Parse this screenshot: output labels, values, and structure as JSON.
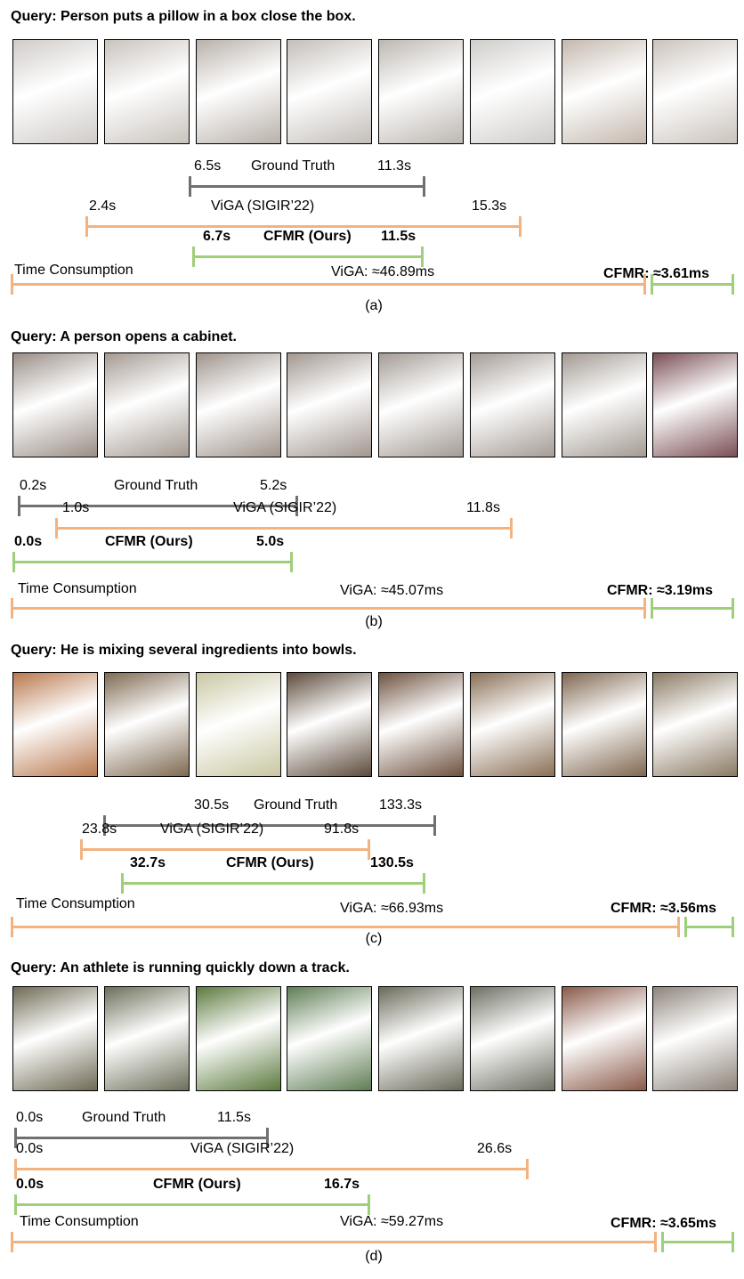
{
  "colors": {
    "ground_truth": "#707070",
    "viga": "#f3b27e",
    "cfmr": "#9fcf7a"
  },
  "panels": [
    {
      "query": "Query: Person puts a pillow in a box close the box.",
      "caption": "(a)",
      "gt": {
        "start": "6.5s",
        "name": "Ground Truth",
        "end": "11.3s"
      },
      "viga": {
        "start": "2.4s",
        "name": "ViGA (SIGIR’22)",
        "end": "15.3s"
      },
      "cfmr": {
        "start": "6.7s",
        "name": "CFMR (Ours)",
        "end": "11.5s"
      },
      "time": {
        "label": "Time Consumption",
        "viga": "ViGA: ≈46.89ms",
        "cfmr": "CFMR: ≈3.61ms"
      },
      "frames": [
        "#cfcbc8",
        "#c9c3bd",
        "#b9b1aa",
        "#c3beb9",
        "#bdb7b1",
        "#cfcdca",
        "#c4b8ae",
        "#cbc3bc"
      ]
    },
    {
      "query": "Query: A person opens a cabinet.",
      "caption": "(b)",
      "gt": {
        "start": "0.2s",
        "name": "Ground Truth",
        "end": "5.2s"
      },
      "viga": {
        "start": "1.0s",
        "name": "ViGA (SIGIR’22)",
        "end": "11.8s"
      },
      "cfmr": {
        "start": "0.0s",
        "name": "CFMR (Ours)",
        "end": "5.0s"
      },
      "time": {
        "label": "Time Consumption",
        "viga": "ViGA: ≈45.07ms",
        "cfmr": "CFMR: ≈3.19ms"
      },
      "frames": [
        "#9a8e86",
        "#a59a92",
        "#a0948c",
        "#a29790",
        "#a49b94",
        "#a59c95",
        "#a39a92",
        "#7a4f55"
      ]
    },
    {
      "query": "Query: He is mixing several ingredients into bowls.",
      "caption": "(c)",
      "gt": {
        "start": "30.5s",
        "name": "Ground Truth",
        "end": "133.3s"
      },
      "viga": {
        "start": "23.8s",
        "name": "ViGA (SIGIR’22)",
        "end": "91.8s"
      },
      "cfmr": {
        "start": "32.7s",
        "name": "CFMR (Ours)",
        "end": "130.5s"
      },
      "time": {
        "label": "Time Consumption",
        "viga": "ViGA: ≈66.93ms",
        "cfmr": "CFMR: ≈3.56ms"
      },
      "frames": [
        "#b9784e",
        "#7e6a52",
        "#c9c7a2",
        "#5d4b3c",
        "#6e5240",
        "#8a6f56",
        "#7f6750",
        "#8a7a63"
      ]
    },
    {
      "query": "Query: An athlete is running quickly down a track.",
      "caption": "(d)",
      "gt": {
        "start": "0.0s",
        "name": "Ground Truth",
        "end": "11.5s"
      },
      "viga": {
        "start": "0.0s",
        "name": "ViGA (SIGIR’22)",
        "end": "26.6s"
      },
      "cfmr": {
        "start": "0.0s",
        "name": "CFMR (Ours)",
        "end": "16.7s"
      },
      "time": {
        "label": "Time Consumption",
        "viga": "ViGA: ≈59.27ms",
        "cfmr": "CFMR: ≈3.65ms"
      },
      "frames": [
        "#6f6a55",
        "#6d6f5a",
        "#5c7a3f",
        "#5f7d55",
        "#6a6a5a",
        "#6e6f62",
        "#8a5a4a",
        "#8e847a"
      ]
    }
  ]
}
